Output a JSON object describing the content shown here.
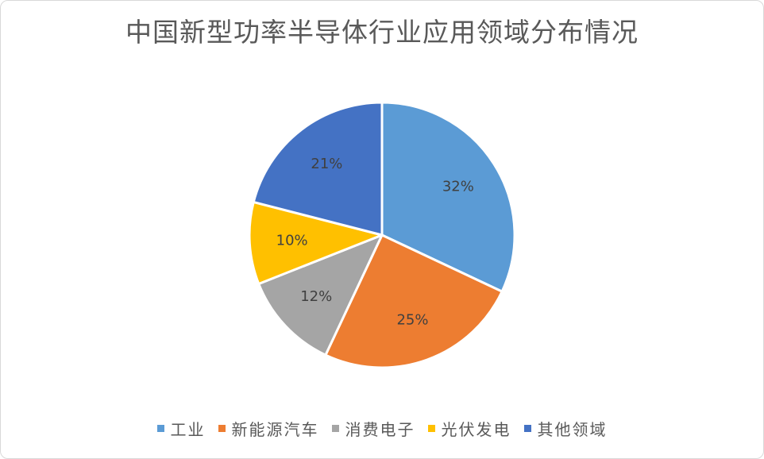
{
  "chart_data": {
    "type": "pie",
    "title": "中国新型功率半导体行业应用领域分布情况",
    "categories": [
      "工业",
      "新能源汽车",
      "消费电子",
      "光伏发电",
      "其他领域"
    ],
    "values": [
      32,
      25,
      12,
      10,
      21
    ],
    "labels": [
      "32%",
      "25%",
      "12%",
      "10%",
      "21%"
    ],
    "colors": [
      "#5B9BD5",
      "#ED7D31",
      "#A5A5A5",
      "#FFC000",
      "#4472C4"
    ],
    "legend_position": "bottom"
  }
}
